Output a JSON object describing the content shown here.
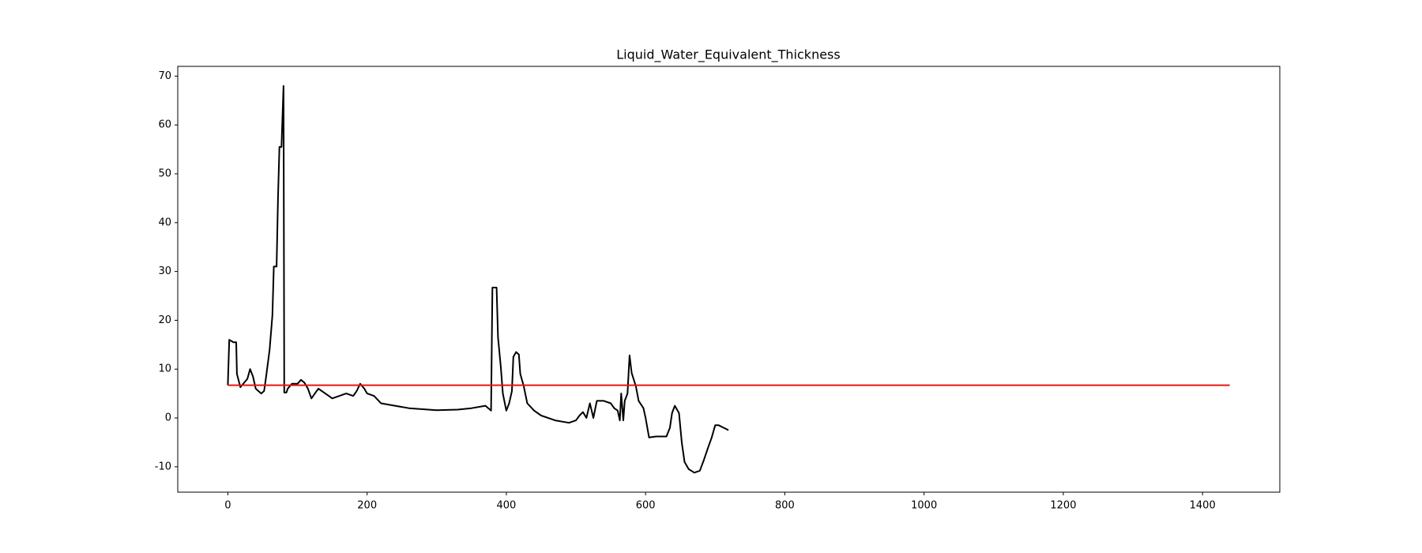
{
  "chart_data": {
    "type": "line",
    "title": "Liquid_Water_Equivalent_Thickness",
    "xlim": [
      -72,
      1511
    ],
    "xticks": [
      0,
      200,
      400,
      600,
      800,
      1000,
      1200,
      1400
    ],
    "ylim": [
      -15.2,
      72
    ],
    "yticks": [
      -10,
      0,
      10,
      20,
      30,
      40,
      50,
      60,
      70
    ],
    "series": [
      {
        "color": "#000000",
        "x": [
          0,
          2,
          8,
          12,
          13,
          18,
          28,
          32,
          36,
          40,
          48,
          52,
          55,
          60,
          64,
          66,
          70,
          72,
          74,
          77,
          80,
          81,
          84,
          86,
          92,
          100,
          105,
          110,
          115,
          120,
          125,
          130,
          140,
          150,
          160,
          170,
          180,
          185,
          190,
          196,
          200,
          210,
          220,
          240,
          260,
          300,
          330,
          350,
          370,
          378,
          380,
          386,
          388,
          392,
          395,
          400,
          404,
          408,
          410,
          414,
          418,
          420,
          425,
          430,
          440,
          450,
          470,
          490,
          500,
          505,
          510,
          515,
          520,
          525,
          530,
          540,
          550,
          555,
          560,
          563,
          565,
          568,
          570,
          574,
          577,
          580,
          586,
          590,
          597,
          600,
          605,
          615,
          630,
          635,
          638,
          642,
          648,
          652,
          656,
          662,
          670,
          678,
          684,
          690,
          695,
          700,
          705,
          712,
          719
        ],
        "values": [
          6.7,
          16,
          15.5,
          15.5,
          9,
          6.3,
          8,
          10,
          8.5,
          6,
          5,
          5.5,
          8.5,
          14,
          21,
          31,
          31,
          45,
          55.5,
          55.5,
          68,
          5.2,
          5.2,
          6,
          7,
          7,
          7.8,
          7.2,
          6,
          4,
          5,
          6,
          5,
          4,
          4.5,
          5,
          4.5,
          5.5,
          7,
          6,
          5,
          4.5,
          3,
          2.5,
          2,
          1.6,
          1.7,
          2,
          2.5,
          1.5,
          26.7,
          26.7,
          16.5,
          10.5,
          5,
          1.5,
          3,
          5.5,
          12.5,
          13.5,
          13,
          9,
          6.5,
          3,
          1.5,
          0.5,
          -0.5,
          -1,
          -0.5,
          0.5,
          1.2,
          0,
          3,
          0,
          3.5,
          3.5,
          3,
          2,
          1.5,
          -0.5,
          5,
          -0.5,
          3.5,
          5,
          12.8,
          9.2,
          6.5,
          3.5,
          2,
          0,
          -4,
          -3.8,
          -3.8,
          -2,
          1,
          2.5,
          1,
          -5,
          -9,
          -10.5,
          -11.2,
          -10.8,
          -8.5,
          -6,
          -4,
          -1.5,
          -1.5,
          -2,
          -2.5
        ]
      },
      {
        "color": "#e8160c",
        "x": [
          0,
          1439
        ],
        "values": [
          6.7,
          6.7
        ]
      }
    ]
  }
}
